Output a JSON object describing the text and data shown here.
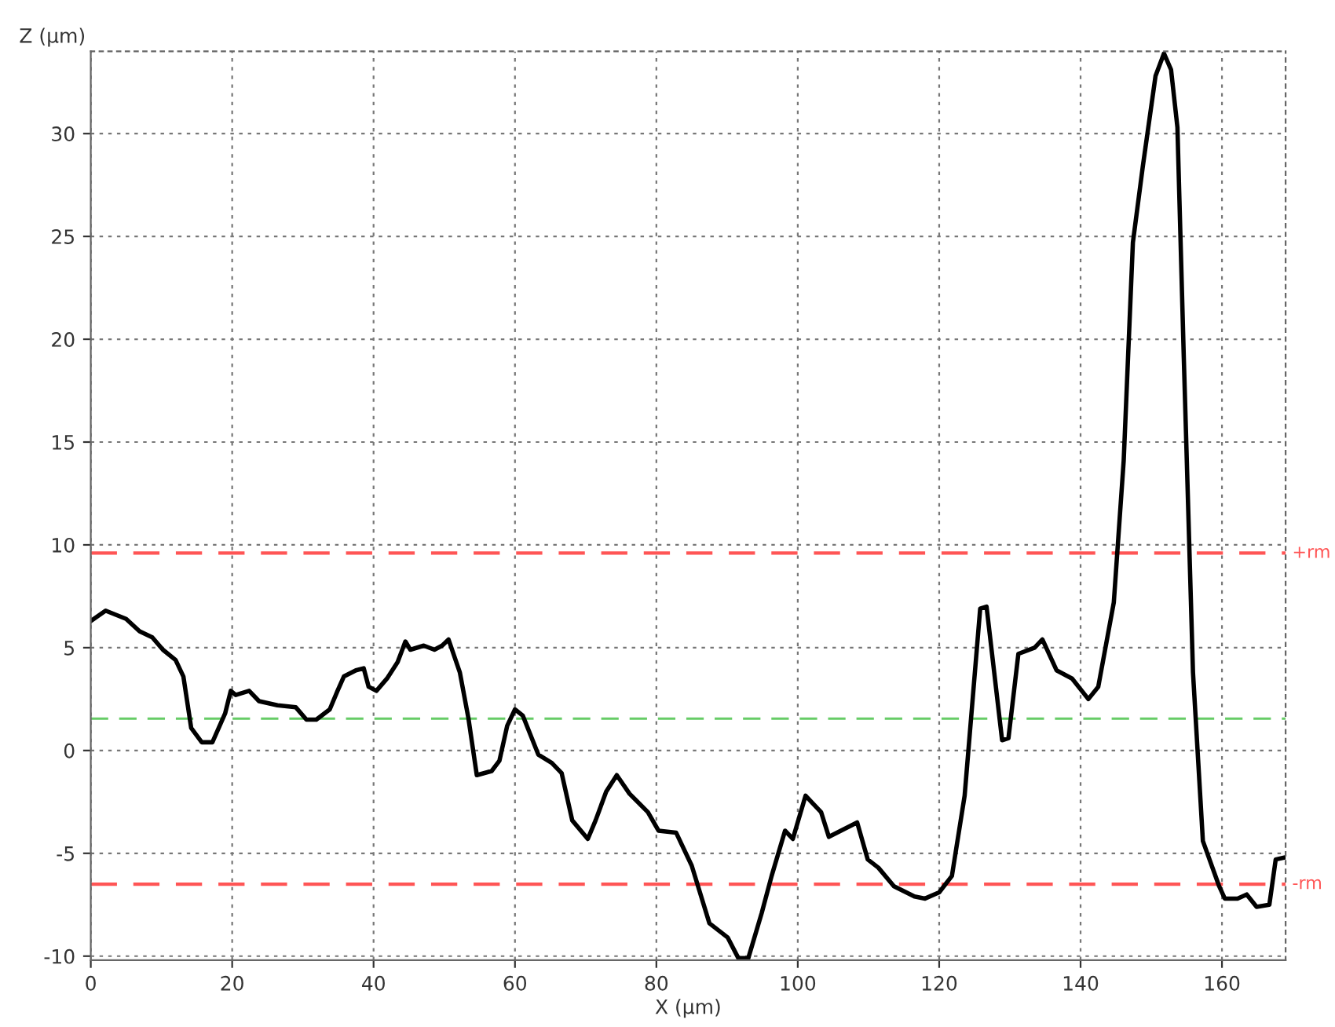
{
  "chart_data": {
    "type": "line",
    "xlabel": "X (µm)",
    "ylabel": "Z (µm)",
    "xlim": [
      0,
      169
    ],
    "ylim": [
      -10.2,
      34
    ],
    "xticks": [
      0,
      20,
      40,
      60,
      80,
      100,
      120,
      140,
      160
    ],
    "yticks": [
      -10,
      -5,
      0,
      5,
      10,
      15,
      20,
      25,
      30
    ],
    "grid": true,
    "line_style": "solid",
    "marker": "none",
    "series": [
      {
        "color": "#000000",
        "x": [
          0,
          2.1,
          5,
          6.9,
          8.7,
          10.2,
          12,
          13.1,
          14.2,
          15.7,
          17.2,
          19,
          19.8,
          20.5,
          22.4,
          23.8,
          26.4,
          29,
          30.5,
          31.9,
          33.8,
          34.9,
          35.8,
          37.5,
          38.6,
          39.3,
          40.4,
          41.9,
          43.4,
          44.5,
          45.2,
          47.1,
          48.6,
          49.7,
          50.6,
          52.2,
          53.4,
          54.6,
          56.7,
          57.8,
          58.9,
          60,
          61.1,
          63.3,
          65.2,
          66.6,
          68.1,
          70.3,
          71.4,
          72.9,
          74.4,
          76.2,
          78.8,
          80.3,
          82.8,
          85,
          87.5,
          90.1,
          91.6,
          93,
          94.9,
          96.3,
          98.2,
          99.3,
          101.1,
          103.3,
          104.4,
          108.4,
          109.9,
          111.4,
          113.6,
          116.5,
          118,
          120,
          121.8,
          123.6,
          125.8,
          126.7,
          128.9,
          129.8,
          131.2,
          133.5,
          134.6,
          136.6,
          138.8,
          141.1,
          142.5,
          144.7,
          146.1,
          147.4,
          148.8,
          150.6,
          151.8,
          152.8,
          153.7,
          154.6,
          155.9,
          157.3,
          159.6,
          160.4,
          162.2,
          163.5,
          164.9,
          166.7,
          167.6,
          168.9
        ],
        "values": [
          6.3,
          6.8,
          6.4,
          5.8,
          5.5,
          4.9,
          4.4,
          3.6,
          1.1,
          0.4,
          0.4,
          1.8,
          2.9,
          2.7,
          2.9,
          2.4,
          2.2,
          2.1,
          1.5,
          1.5,
          2.0,
          2.9,
          3.6,
          3.9,
          4.0,
          3.1,
          2.9,
          3.5,
          4.3,
          5.3,
          4.9,
          5.1,
          4.9,
          5.1,
          5.4,
          3.8,
          1.6,
          -1.2,
          -1.0,
          -0.5,
          1.2,
          2.0,
          1.7,
          -0.2,
          -0.6,
          -1.1,
          -3.4,
          -4.3,
          -3.4,
          -2.0,
          -1.2,
          -2.1,
          -3.0,
          -3.9,
          -4.0,
          -5.6,
          -8.4,
          -9.1,
          -10.1,
          -10.1,
          -7.9,
          -6.1,
          -3.9,
          -4.3,
          -2.2,
          -3.0,
          -4.2,
          -3.5,
          -5.3,
          -5.7,
          -6.6,
          -7.1,
          -7.2,
          -6.9,
          -6.1,
          -2.2,
          6.9,
          7.0,
          0.5,
          0.6,
          4.7,
          5.0,
          5.4,
          3.9,
          3.5,
          2.5,
          3.1,
          7.2,
          14.1,
          24.7,
          28.4,
          32.8,
          33.9,
          33.1,
          30.3,
          19.1,
          3.8,
          -4.4,
          -6.6,
          -7.2,
          -7.2,
          -7.0,
          -7.6,
          -7.5,
          -5.3,
          -5.2
        ]
      }
    ],
    "ref_lines": [
      {
        "axis": "y",
        "value": 9.6,
        "label": "+rm",
        "color": "#ff5555",
        "line_style": "dashed"
      },
      {
        "axis": "y",
        "value": 1.55,
        "label": null,
        "color": "#66cc66",
        "line_style": "dashed"
      },
      {
        "axis": "y",
        "value": -6.5,
        "label": "-rm",
        "color": "#ff5555",
        "line_style": "dashed"
      }
    ]
  }
}
